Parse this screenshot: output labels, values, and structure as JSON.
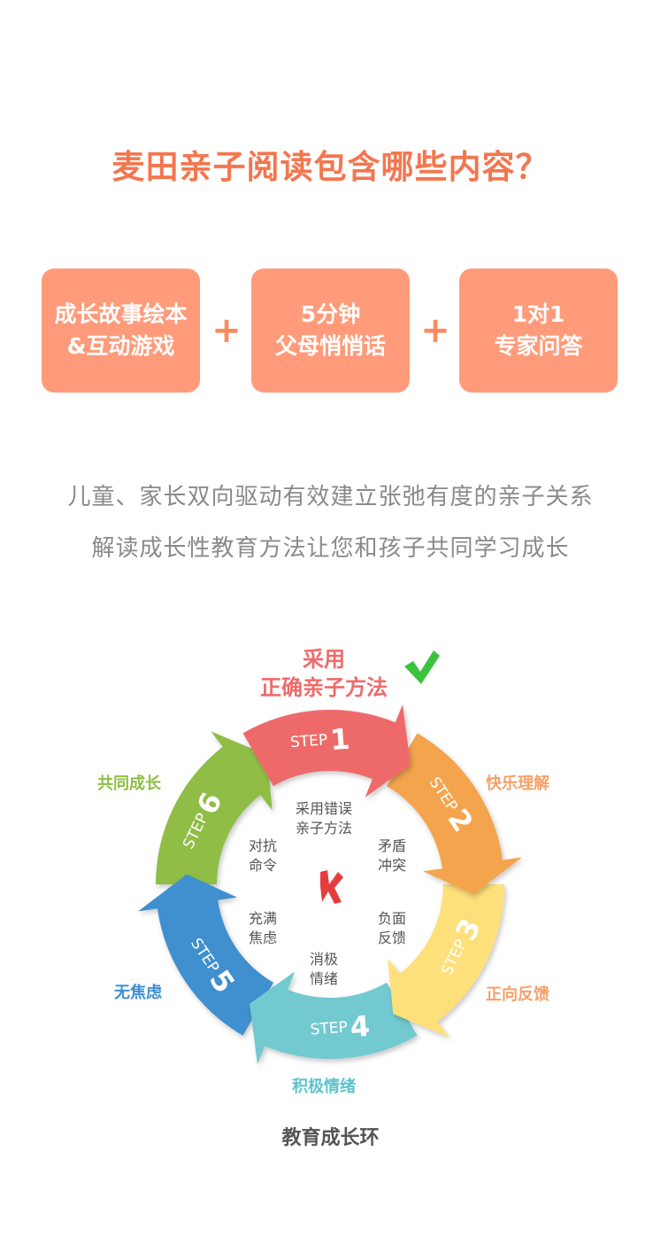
{
  "page": {
    "title": "麦田亲子阅读包含哪些内容？",
    "boxes": [
      {
        "line1": "成长故事绘本",
        "line2": "&互动游戏"
      },
      {
        "line1": "5分钟",
        "line2": "父母悄悄话"
      },
      {
        "line1": "1对1",
        "line2": "专家问答"
      }
    ],
    "plus": "+",
    "subtitles": [
      "儿童、家长双向驱动有效建立张弛有度的亲子关系",
      "解读成长性教育方法让您和孩子共同学习成长"
    ]
  },
  "wheel": {
    "top_label_line1": "采用",
    "top_label_line2": "正确亲子方法",
    "step_word": "STEP",
    "steps": [
      {
        "num": "1",
        "color": "#ee6b6b",
        "outer_label": "",
        "label_color": "#ee6b6b"
      },
      {
        "num": "2",
        "color": "#f4a44e",
        "outer_label": "快乐理解",
        "label_color": "#f6a068"
      },
      {
        "num": "3",
        "color": "#fde07a",
        "outer_label": "正向反馈",
        "label_color": "#f6a068"
      },
      {
        "num": "4",
        "color": "#72c9d0",
        "outer_label": "积极情绪",
        "label_color": "#5cc3cc"
      },
      {
        "num": "5",
        "color": "#3f8fce",
        "outer_label": "无焦虑",
        "label_color": "#3f8fce"
      },
      {
        "num": "6",
        "color": "#8fbd45",
        "outer_label": "共同成长",
        "label_color": "#8fbd45"
      }
    ],
    "inner_labels": [
      {
        "l1": "采用错误",
        "l2": "亲子方法"
      },
      {
        "l1": "矛盾",
        "l2": "冲突"
      },
      {
        "l1": "负面",
        "l2": "反馈"
      },
      {
        "l1": "消极",
        "l2": "情绪"
      },
      {
        "l1": "充满",
        "l2": "焦虑"
      },
      {
        "l1": "对抗",
        "l2": "命令"
      }
    ],
    "check_icon": "check-icon",
    "cross_icon": "cross-icon",
    "caption": "教育成长环"
  }
}
